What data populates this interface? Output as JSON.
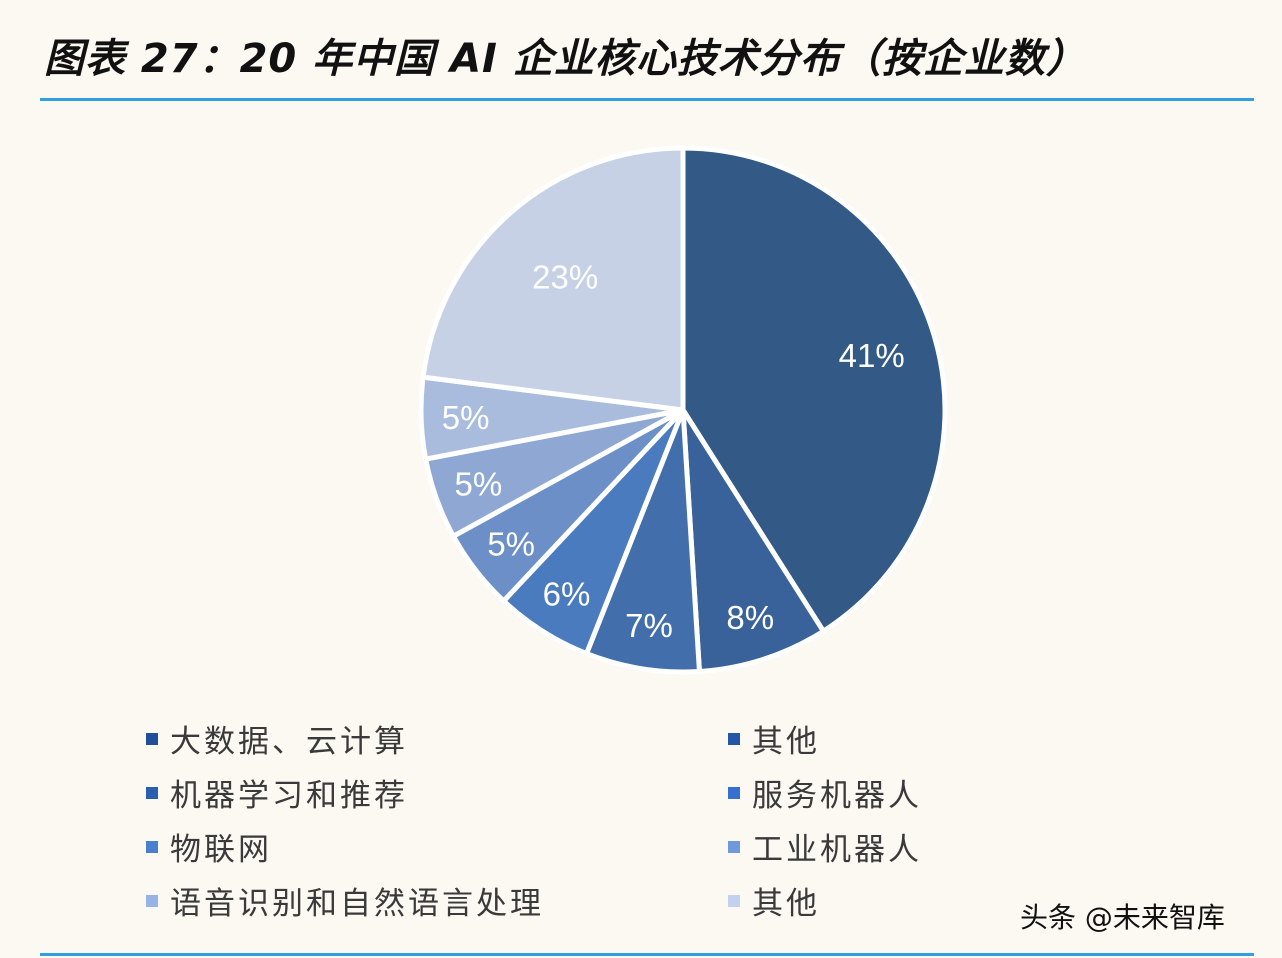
{
  "title": "图表 27：20 年中国 AI 企业核心技术分布（按企业数）",
  "watermark": "头条 @未来智库",
  "colors": {
    "rule": "#2f9fe0",
    "background": "#fcf8f2"
  },
  "chart_data": {
    "type": "pie",
    "title": "图表 27：20 年中国 AI 企业核心技术分布（按企业数）",
    "start_angle_deg": 0,
    "direction": "clockwise",
    "slices": [
      {
        "label": "大数据、云计算",
        "value": 41,
        "display": "41%",
        "color": "#335a87"
      },
      {
        "label": "其他",
        "value": 8,
        "display": "8%",
        "color": "#3a629a"
      },
      {
        "label": "机器学习和推荐",
        "value": 7,
        "display": "7%",
        "color": "#426fab"
      },
      {
        "label": "服务机器人",
        "value": 6,
        "display": "6%",
        "color": "#4a7bbe"
      },
      {
        "label": "物联网",
        "value": 5,
        "display": "5%",
        "color": "#6b8fc6"
      },
      {
        "label": "工业机器人",
        "value": 5,
        "display": "5%",
        "color": "#8ea8d3"
      },
      {
        "label": "语音识别和自然语言处理",
        "value": 5,
        "display": "5%",
        "color": "#a9bcde"
      },
      {
        "label": "其他",
        "value": 23,
        "display": "23%",
        "color": "#c6d1e5"
      }
    ],
    "legend_position": "bottom"
  },
  "legend": {
    "left": [
      {
        "label": "大数据、云计算",
        "color": "#1f4f9a"
      },
      {
        "label": "机器学习和推荐",
        "color": "#2a5fb0"
      },
      {
        "label": "物联网",
        "color": "#4a7fd0"
      },
      {
        "label": "语音识别和自然语言处理",
        "color": "#98b4e6"
      }
    ],
    "right": [
      {
        "label": "其他",
        "color": "#2456a8"
      },
      {
        "label": "服务机器人",
        "color": "#3570d0"
      },
      {
        "label": "工业机器人",
        "color": "#6f99dc"
      },
      {
        "label": "其他",
        "color": "#c3d1ee"
      }
    ]
  }
}
